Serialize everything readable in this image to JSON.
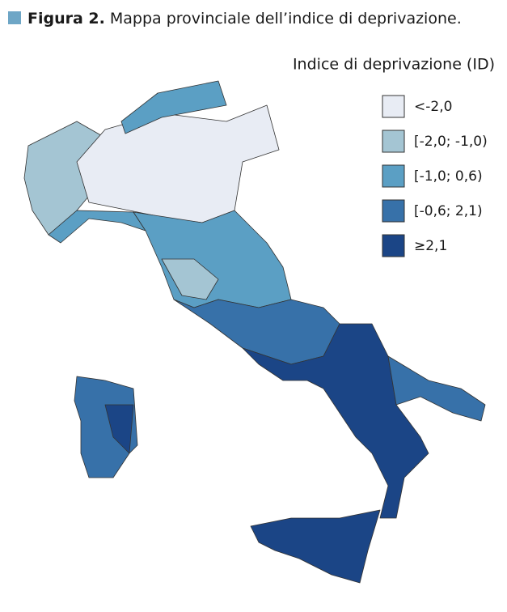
{
  "figure_label": "Figura 2.",
  "title": "Mappa provinciale dell’indice di deprivazione.",
  "legend": {
    "title": "Indice di deprivazione (ID)",
    "items": [
      {
        "label": "<-2,0",
        "color": "#e8ecf4"
      },
      {
        "label": "[-2,0; -1,0)",
        "color": "#a4c5d3"
      },
      {
        "label": "[-1,0; 0,6)",
        "color": "#5b9fc4"
      },
      {
        "label": "[-0,6; 2,1)",
        "color": "#3771a9"
      },
      {
        "label": "≥2,1",
        "color": "#1b4586"
      }
    ]
  }
}
